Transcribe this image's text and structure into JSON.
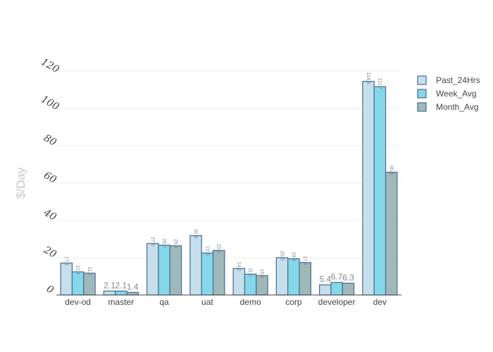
{
  "chart_data": {
    "type": "bar",
    "title": "",
    "xlabel": "",
    "ylabel": "$/Day",
    "ylim": [
      0,
      120
    ],
    "yticks": [
      0,
      20,
      40,
      60,
      80,
      100,
      120
    ],
    "grid": true,
    "legend_position": "top-right",
    "categories": [
      "dev-od",
      "master",
      "qa",
      "uat",
      "demo",
      "corp",
      "developer",
      "dev"
    ],
    "series": [
      {
        "name": "Past_24Hrs",
        "color": "#c5dfec",
        "values": [
          17.1,
          2.1,
          27.6,
          31.8,
          14.2,
          20.0,
          5.4,
          114.5
        ],
        "labels": [
          "17.1",
          "2.1",
          "27.6",
          "31.8",
          "14.2",
          "20.0",
          "5.4",
          "114.5"
        ]
      },
      {
        "name": "Week_Avg",
        "color": "#84d8ea",
        "values": [
          12.4,
          2.1,
          26.7,
          22.5,
          11.2,
          19.4,
          6.7,
          111.7
        ],
        "labels": [
          "12.4",
          "2.1",
          "26.7",
          "22.5",
          "11.2",
          "19.4",
          "6.7",
          "111.7"
        ]
      },
      {
        "name": "Month_Avg",
        "color": "#9fb8b9",
        "values": [
          11.7,
          1.4,
          26.4,
          23.9,
          10.4,
          17.4,
          6.3,
          65.8
        ],
        "labels": [
          "11.7",
          "1.4",
          "26.4",
          "23.9",
          "10.4",
          "17.4",
          "6.3",
          "65.8"
        ]
      }
    ]
  }
}
